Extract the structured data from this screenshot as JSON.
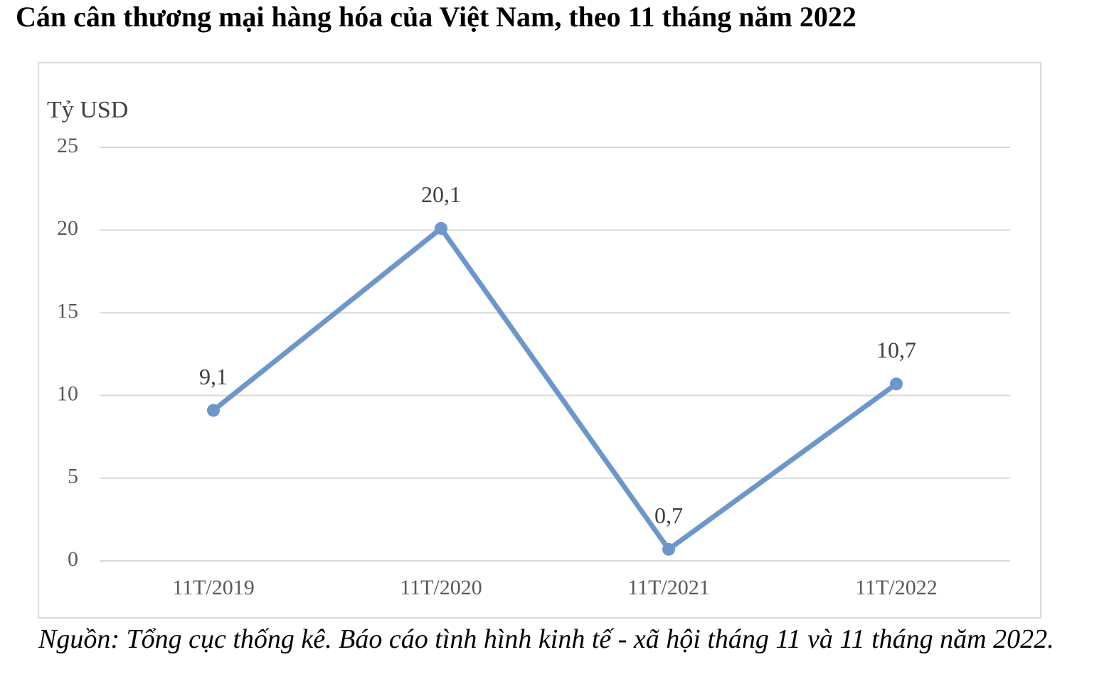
{
  "chart_data": {
    "type": "line",
    "title": "Cán cân thương mại hàng hóa của Việt Nam, theo 11 tháng năm 2022",
    "y_label": "Tỷ USD",
    "categories": [
      "11T/2019",
      "11T/2020",
      "11T/2021",
      "11T/2022"
    ],
    "values": [
      9.1,
      20.1,
      0.7,
      10.7
    ],
    "value_labels": [
      "9,1",
      "20,1",
      "0,7",
      "10,7"
    ],
    "color": "#6b97cc",
    "ylim": [
      0,
      25
    ],
    "yticks": [
      0,
      5,
      10,
      15,
      20,
      25
    ],
    "grid": true,
    "source": "Nguồn: Tổng cục thống kê. Báo cáo tình hình kinh tế - xã hội tháng 11 và 11 tháng năm 2022."
  }
}
